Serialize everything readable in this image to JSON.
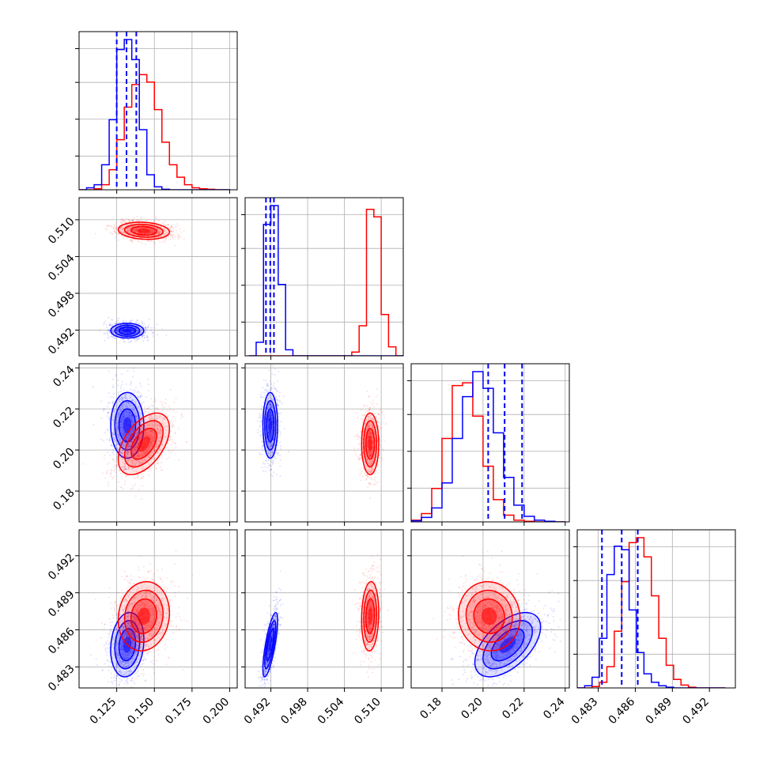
{
  "chart_data": {
    "type": "corner",
    "grid": true,
    "series": [
      {
        "color": "#0000ff",
        "quantiles": {
          "p0": [
            0.125,
            0.1315,
            0.138
          ],
          "p1": [
            0.4912,
            0.4919,
            0.4925
          ],
          "p2": [
            0.2025,
            0.2105,
            0.219
          ],
          "p3": [
            0.4833,
            0.4849,
            0.4862
          ]
        },
        "means": {
          "p0": 0.132,
          "p1": 0.4919,
          "p2": 0.212,
          "p3": 0.4848
        },
        "sds": {
          "p0": 0.0055,
          "p1": 0.0006,
          "p2": 0.008,
          "p3": 0.0013
        },
        "correlations": {
          "p0_p1": 0.0,
          "p0_p2": 0.0,
          "p0_p3": 0.15,
          "p1_p2": 0.0,
          "p1_p3": 0.75,
          "p2_p3": 0.55
        }
      },
      {
        "color": "#ff0000",
        "quantiles": {},
        "means": {
          "p0": 0.143,
          "p1": 0.5082,
          "p2": 0.203,
          "p3": 0.4871
        },
        "sds": {
          "p0": 0.0085,
          "p1": 0.0007,
          "p2": 0.0075,
          "p3": 0.0014
        },
        "correlations": {
          "p0_p1": -0.15,
          "p0_p2": 0.5,
          "p0_p3": 0.1,
          "p1_p2": 0.0,
          "p1_p3": 0.1,
          "p2_p3": -0.05
        }
      }
    ],
    "parameters": [
      {
        "key": "p0",
        "range": [
          0.1,
          0.205
        ],
        "ticks": [
          0.125,
          0.15,
          0.175,
          0.2
        ],
        "tick_labels": [
          "0.125",
          "0.150",
          "0.175",
          "0.200"
        ]
      },
      {
        "key": "p1",
        "range": [
          0.4878,
          0.5136
        ],
        "ticks": [
          0.492,
          0.498,
          0.504,
          0.51
        ],
        "tick_labels": [
          "0.492",
          "0.498",
          "0.504",
          "0.510"
        ]
      },
      {
        "key": "p2",
        "range": [
          0.165,
          0.242
        ],
        "ticks": [
          0.18,
          0.2,
          0.22,
          0.24
        ],
        "tick_labels": [
          "0.18",
          "0.20",
          "0.22",
          "0.24"
        ]
      },
      {
        "key": "p3",
        "range": [
          0.4813,
          0.4941
        ],
        "ticks": [
          0.483,
          0.486,
          0.489,
          0.492
        ],
        "tick_labels": [
          "0.483",
          "0.486",
          "0.489",
          "0.492"
        ]
      }
    ],
    "histograms": {
      "p0": {
        "bin_edges": [
          0.1,
          0.105,
          0.11,
          0.115,
          0.12,
          0.125,
          0.13,
          0.135,
          0.14,
          0.145,
          0.15,
          0.155,
          0.16,
          0.165,
          0.17,
          0.175,
          0.18,
          0.185,
          0.19,
          0.195,
          0.2
        ],
        "blue": [
          0,
          4,
          10,
          50,
          140,
          280,
          300,
          260,
          120,
          30,
          6,
          1,
          0,
          0,
          0,
          0,
          0,
          0,
          0,
          0
        ],
        "red": [
          0,
          0,
          2,
          10,
          40,
          100,
          165,
          210,
          230,
          215,
          160,
          95,
          50,
          25,
          10,
          4,
          2,
          1,
          0,
          0
        ]
      },
      "p1": {
        "bin_edges": [
          0.4884,
          0.4896,
          0.4908,
          0.492,
          0.4932,
          0.4944,
          0.4956,
          0.4968,
          0.498,
          0.4992,
          0.5004,
          0.5016,
          0.5028,
          0.504,
          0.5052,
          0.5064,
          0.5076,
          0.5088,
          0.51,
          0.5112,
          0.5124,
          0.5136
        ],
        "blue": [
          0,
          18,
          175,
          200,
          95,
          8,
          0,
          0,
          0,
          0,
          0,
          0,
          0,
          0,
          0,
          0,
          0,
          0,
          0,
          0,
          0
        ],
        "red": [
          0,
          0,
          0,
          0,
          0,
          0,
          0,
          0,
          0,
          0,
          0,
          0,
          0,
          0,
          5,
          40,
          195,
          185,
          55,
          12,
          0
        ]
      },
      "p2": {
        "bin_edges": [
          0.165,
          0.17,
          0.175,
          0.18,
          0.185,
          0.19,
          0.195,
          0.2,
          0.205,
          0.21,
          0.215,
          0.22,
          0.225,
          0.23,
          0.235,
          0.24
        ],
        "blue": [
          2,
          8,
          25,
          70,
          150,
          225,
          270,
          240,
          160,
          80,
          30,
          10,
          3,
          1,
          0
        ],
        "red": [
          3,
          15,
          60,
          150,
          245,
          250,
          190,
          100,
          40,
          12,
          3,
          1,
          0,
          0,
          0
        ],
        "bins_note": ""
      },
      "p3": {
        "bin_edges": [
          0.4813,
          0.4819,
          0.4825,
          0.4831,
          0.4837,
          0.4843,
          0.4849,
          0.4855,
          0.4861,
          0.4867,
          0.4873,
          0.4879,
          0.4885,
          0.4891,
          0.4897,
          0.4903,
          0.4909,
          0.4915,
          0.4921,
          0.4927,
          0.4933
        ],
        "blue": [
          0,
          3,
          15,
          70,
          160,
          200,
          195,
          110,
          50,
          20,
          8,
          3,
          1,
          0,
          0,
          0,
          0,
          0,
          0,
          0
        ],
        "red": [
          0,
          0,
          2,
          8,
          30,
          80,
          150,
          205,
          212,
          185,
          130,
          70,
          32,
          12,
          4,
          1,
          0,
          0,
          0,
          0
        ]
      }
    },
    "xlabel": "",
    "ylabel": ""
  }
}
